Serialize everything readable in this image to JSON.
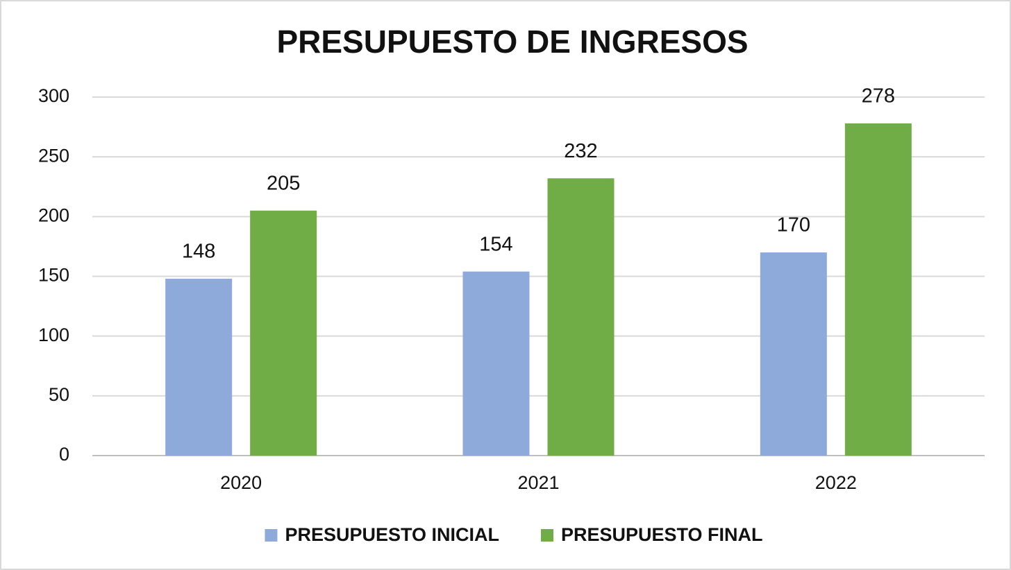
{
  "chart_data": {
    "type": "bar",
    "title": "PRESUPUESTO DE INGRESOS",
    "categories": [
      "2020",
      "2021",
      "2022"
    ],
    "series": [
      {
        "name": "PRESUPUESTO INICIAL",
        "color": "#8eaadb",
        "values": [
          148,
          154,
          170
        ]
      },
      {
        "name": "PRESUPUESTO FINAL",
        "color": "#70ad47",
        "values": [
          205,
          232,
          278
        ]
      }
    ],
    "ylim": [
      0,
      300
    ],
    "yticks": [
      0,
      50,
      100,
      150,
      200,
      250,
      300
    ],
    "grid": true,
    "legend": "bottom"
  }
}
